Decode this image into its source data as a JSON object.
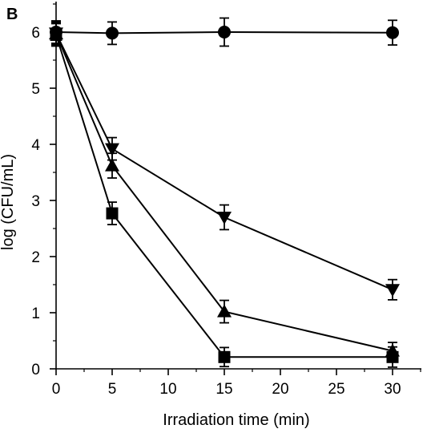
{
  "panel_label": "B",
  "chart_data": {
    "type": "line",
    "title": "",
    "xlabel": "Irradiation time (min)",
    "ylabel": "log (CFU/mL)",
    "xlim": [
      0,
      32
    ],
    "ylim": [
      0,
      6.5
    ],
    "x_ticks": [
      0,
      5,
      10,
      15,
      20,
      25,
      30
    ],
    "y_ticks": [
      0,
      1,
      2,
      3,
      4,
      5,
      6
    ],
    "grid": false,
    "legend": "none",
    "colors": {
      "line": "#000000",
      "marker": "#000000"
    },
    "x": [
      0,
      5,
      15,
      30
    ],
    "series": [
      {
        "marker": "circle",
        "values": [
          6.0,
          5.98,
          6.0,
          5.99
        ],
        "errors": [
          0.2,
          0.2,
          0.25,
          0.22
        ]
      },
      {
        "marker": "triangle-down",
        "values": [
          5.98,
          3.92,
          2.7,
          1.41
        ],
        "errors": [
          0.2,
          0.2,
          0.22,
          0.18
        ]
      },
      {
        "marker": "triangle-up",
        "values": [
          5.97,
          3.62,
          1.02,
          0.32
        ],
        "errors": [
          0.2,
          0.22,
          0.2,
          0.15
        ]
      },
      {
        "marker": "square",
        "values": [
          5.95,
          2.77,
          0.21,
          0.21
        ],
        "errors": [
          0.2,
          0.2,
          0.17,
          0.18
        ]
      }
    ]
  }
}
